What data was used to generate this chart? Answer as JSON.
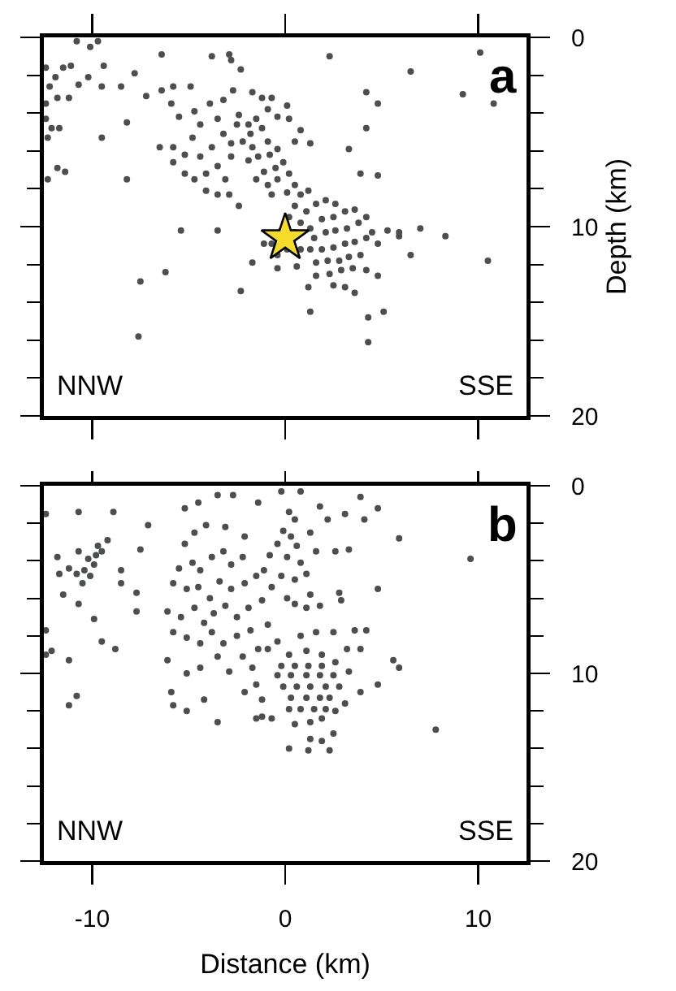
{
  "chart_data": [
    {
      "type": "scatter",
      "ylabel": "Depth (km)",
      "xlim": [
        -12.5,
        12.5
      ],
      "xticks": [
        -10,
        0,
        10
      ],
      "ylim": [
        20,
        0
      ],
      "yticks": [
        0,
        10,
        20
      ],
      "tick_labels": "y",
      "marker": "circle",
      "annotations": [
        "a",
        "NNW",
        "SSE"
      ],
      "series": [
        {
          "color": "#4d4f4f",
          "x": [
            -10.8,
            -10.1,
            -9.7,
            -6.4,
            -3.8,
            -2.9,
            -2.8,
            -2.3,
            2.3,
            6.5,
            10.1,
            9.2,
            10.8,
            -12.4,
            -11.9,
            -11.5,
            -11.1,
            -12.2,
            -11.8,
            -12.4,
            -12.4,
            -12.1,
            -11.7,
            -12.3,
            -11.8,
            -11.4,
            -12.3,
            -9.4,
            -9.5,
            -8.5,
            -7.8,
            -8.2,
            -9.5,
            -8.2,
            -5.4,
            -3.5,
            -6.2,
            -7.5,
            -7.6,
            -2.3,
            1.3,
            4.3,
            5.1,
            4.3,
            8.3,
            10.5,
            7.0,
            6.5,
            5.9,
            4.8,
            4.2,
            3.3,
            3.9,
            4.8,
            -7.2,
            -6.4,
            -5.8,
            -4.9,
            -10.2,
            -10.7,
            -11.2,
            4.2,
            -5.9,
            -5.5,
            -4.7,
            -4.4,
            -3.9,
            -3.5,
            -5.8,
            -5.2,
            -4.8,
            -4.4,
            -3.8,
            -3.2,
            -3.5,
            -4.1,
            -4.7,
            -3.1,
            -2.8,
            -6.5,
            -5.8,
            -5.2,
            -2.9,
            -2.4,
            -3.5,
            -4.1,
            -2.8,
            -3.2,
            -2.7,
            -1.7,
            -1.2,
            -0.9,
            -0.4,
            0.2,
            0.8,
            1.3,
            0.5,
            0.1,
            -0.7,
            -2.4,
            -1.9,
            -2.5,
            -1.8,
            -1.5,
            -1.2,
            -2.2,
            -1.7,
            -0.9,
            -1.4,
            -1.9,
            -0.8,
            -0.4,
            -1.1,
            -0.5,
            -0.1,
            -1.5,
            -0.9,
            -0.4,
            0.2,
            0.5,
            -0.7,
            0.1,
            0.8,
            1.2,
            0.5,
            1.1,
            1.6,
            2.1,
            2.6,
            0.2,
            0.8,
            1.3,
            1.9,
            2.5,
            3.1,
            3.6,
            1.5,
            2.1,
            2.6,
            3.2,
            3.8,
            4.2,
            1.3,
            1.9,
            2.5,
            3.1,
            3.6,
            4.2,
            4.8,
            1.6,
            2.2,
            2.8,
            3.3,
            3.9,
            1.6,
            2.3,
            2.9,
            3.5,
            4.2,
            2.5,
            3.1,
            3.6,
            4.8,
            5.3,
            5.9,
            4.5,
            1.2,
            0.6,
            0.8,
            0.1,
            -0.4,
            -0.2,
            0.5,
            -0.7,
            -1.1,
            -1.7,
            -0.4
          ],
          "values": [
            0.2,
            0.5,
            0.2,
            0.9,
            1.0,
            0.9,
            1.2,
            1.7,
            1.0,
            1.8,
            0.8,
            3.0,
            3.5,
            1.6,
            2.1,
            1.6,
            1.5,
            2.6,
            3.2,
            3.5,
            4.3,
            4.8,
            4.8,
            5.3,
            6.9,
            7.1,
            7.5,
            1.5,
            2.6,
            2.6,
            1.9,
            4.5,
            5.3,
            7.5,
            10.2,
            10.2,
            12.4,
            12.9,
            15.8,
            13.4,
            14.5,
            14.8,
            14.5,
            16.1,
            10.5,
            11.8,
            10.1,
            11.5,
            10.3,
            3.5,
            4.8,
            5.9,
            7.2,
            7.3,
            3.1,
            2.8,
            2.6,
            2.6,
            2.1,
            2.5,
            3.2,
            2.9,
            3.5,
            4.2,
            3.9,
            4.6,
            3.5,
            4.3,
            5.8,
            6.2,
            5.3,
            6.3,
            5.8,
            5.1,
            6.8,
            7.2,
            7.5,
            7.5,
            6.3,
            5.8,
            6.6,
            7.2,
            8.3,
            8.9,
            8.3,
            8.1,
            5.6,
            3.3,
            2.8,
            2.9,
            3.2,
            3.8,
            4.2,
            4.3,
            4.9,
            5.6,
            5.5,
            3.6,
            3.2,
            4.1,
            4.6,
            4.6,
            5.1,
            4.3,
            4.8,
            5.5,
            5.8,
            5.5,
            6.3,
            6.5,
            6.2,
            5.9,
            7.1,
            6.9,
            6.6,
            7.5,
            7.8,
            7.5,
            7.2,
            7.8,
            8.3,
            8.2,
            8.3,
            8.1,
            8.9,
            9.2,
            8.8,
            8.6,
            8.8,
            9.5,
            9.8,
            10.1,
            9.6,
            9.5,
            9.2,
            9.1,
            10.6,
            10.3,
            10.2,
            10.1,
            9.8,
            9.5,
            11.2,
            11.2,
            11.1,
            10.9,
            10.8,
            10.6,
            10.9,
            11.9,
            11.8,
            11.8,
            11.6,
            11.5,
            12.6,
            12.5,
            12.3,
            12.2,
            12.3,
            13.1,
            13.2,
            13.5,
            12.6,
            10.2,
            10.5,
            10.3,
            13.2,
            12.1,
            11.2,
            11.2,
            11.5,
            10.2,
            10.3,
            10.9,
            10.9,
            11.9,
            12.2
          ]
        },
        {
          "color": "#f5dc2a",
          "marker": "star",
          "x": [
            0
          ],
          "values": [
            10.6
          ]
        }
      ]
    },
    {
      "type": "scatter",
      "xlabel": "Distance (km)",
      "xlim": [
        -12.5,
        12.5
      ],
      "xticks": [
        -10,
        0,
        10
      ],
      "ylim": [
        20,
        0
      ],
      "yticks": [
        0,
        10,
        20
      ],
      "marker": "circle",
      "annotations": [
        "b",
        "NNW",
        "SSE"
      ],
      "series": [
        {
          "color": "#4d4f4f",
          "x": [
            -10.7,
            -10.2,
            -9.9,
            -9.8,
            -10.4,
            -10.1,
            -9.5,
            -10.8,
            -9.7,
            -10.5,
            -9.2,
            -11.2,
            -11.7,
            -11.8,
            -11.5,
            -10.7,
            -9.9,
            -9.5,
            -8.8,
            -11.2,
            -10.8,
            -11.2,
            -12.4,
            -12.4,
            -12.1,
            -12.4,
            -10.7,
            -8.9,
            -8.5,
            -8.5,
            -7.7,
            -7.7,
            -7.1,
            -7.5,
            -5.2,
            -4.5,
            -3.5,
            -2.7,
            -1.4,
            -0.2,
            0.8,
            1.8,
            2.2,
            3.1,
            3.9,
            4.1,
            4.8,
            5.9,
            9.6,
            4.8,
            7.8,
            5.6,
            5.9,
            4.8,
            3.9,
            3.6,
            4.2,
            -5.2,
            -4.7,
            -4.1,
            -3.1,
            -2.1,
            -5.5,
            -4.8,
            -4.4,
            -3.8,
            -3.2,
            -2.8,
            -2.2,
            -5.8,
            -5.1,
            -4.5,
            -3.9,
            -3.4,
            -2.8,
            -2.1,
            -1.5,
            -6.1,
            -5.4,
            -4.7,
            -4.2,
            -3.7,
            -3.1,
            -2.5,
            -1.9,
            -1.2,
            -5.8,
            -5.1,
            -4.4,
            -3.8,
            -3.2,
            -2.5,
            -1.8,
            -1.4,
            -0.9,
            -6.1,
            -5.1,
            -4.4,
            -3.5,
            -2.9,
            -2.2,
            -1.7,
            -5.9,
            -5.8,
            -5.1,
            -4.2,
            -3.5,
            -2.1,
            -1.5,
            -1.2,
            -1.5,
            0.2,
            0.5,
            -0.1,
            0.3,
            -0.4,
            0.6,
            -0.8,
            0.1,
            0.8,
            -1.1,
            -0.2,
            0.5,
            -0.7,
            1.1,
            1.3,
            1.8,
            1.1,
            0.5,
            0.1,
            1.3,
            1.6,
            2.6,
            3.3,
            2.8,
            2.9,
            0.2,
            1.1,
            1.9,
            -0.2,
            0.5,
            1.2,
            1.9,
            2.6,
            -0.4,
            0.3,
            1.1,
            1.8,
            2.5,
            -0.1,
            0.6,
            1.3,
            2.1,
            2.8,
            0.3,
            1.1,
            1.8,
            2.3,
            0.8,
            1.5,
            2.1,
            0.2,
            1.3,
            1.9,
            2.6,
            0.5,
            3.1,
            3.3,
            -0.9,
            -0.4,
            0.8,
            1.6,
            2.5,
            3.2,
            3.9,
            1.3,
            1.9,
            2.5,
            0.2,
            1.2,
            2.3,
            -0.7,
            -1.2
          ],
          "values": [
            3.5,
            3.9,
            4.2,
            3.7,
            4.5,
            4.8,
            3.5,
            4.7,
            3.2,
            5.2,
            2.9,
            4.4,
            4.7,
            3.8,
            5.8,
            6.3,
            7.1,
            8.3,
            8.7,
            9.3,
            11.2,
            11.7,
            7.7,
            9.0,
            8.8,
            1.5,
            1.4,
            1.4,
            4.5,
            5.2,
            5.7,
            6.7,
            2.1,
            3.4,
            1.2,
            0.9,
            0.5,
            0.5,
            0.9,
            0.3,
            0.3,
            1.1,
            1.8,
            1.5,
            0.6,
            1.8,
            1.2,
            2.8,
            3.9,
            5.5,
            13.0,
            9.3,
            9.7,
            10.6,
            11.0,
            7.7,
            7.7,
            3.1,
            2.5,
            2.1,
            2.2,
            2.7,
            4.4,
            4.1,
            4.5,
            3.8,
            3.5,
            4.2,
            3.8,
            5.2,
            5.5,
            5.4,
            6.0,
            5.1,
            5.5,
            5.2,
            4.8,
            6.7,
            7.0,
            6.5,
            7.3,
            6.8,
            6.4,
            7.0,
            6.5,
            6.1,
            7.8,
            8.1,
            8.4,
            7.8,
            8.4,
            8.0,
            7.7,
            8.7,
            7.4,
            9.3,
            10.0,
            9.7,
            9.1,
            9.9,
            9.1,
            9.7,
            11.0,
            11.7,
            12.0,
            11.4,
            12.6,
            11.0,
            10.6,
            11.4,
            12.4,
            1.4,
            1.8,
            2.4,
            2.7,
            3.1,
            3.2,
            3.7,
            3.8,
            4.1,
            4.5,
            4.8,
            5.0,
            5.4,
            4.7,
            5.8,
            6.4,
            6.5,
            6.3,
            6.0,
            2.5,
            3.5,
            3.5,
            3.4,
            5.7,
            6.1,
            9.0,
            8.8,
            9.0,
            9.6,
            9.6,
            9.6,
            9.6,
            9.4,
            10.1,
            10.1,
            10.1,
            10.1,
            10.1,
            10.7,
            10.7,
            10.7,
            10.7,
            10.7,
            11.3,
            11.3,
            11.3,
            11.3,
            11.9,
            11.9,
            11.9,
            11.9,
            12.6,
            12.4,
            12.0,
            12.7,
            11.6,
            9.9,
            8.7,
            8.3,
            8.0,
            7.8,
            7.8,
            8.7,
            8.7,
            13.5,
            13.6,
            13.2,
            14.0,
            14.1,
            14.1,
            12.4,
            12.3
          ]
        }
      ]
    }
  ]
}
